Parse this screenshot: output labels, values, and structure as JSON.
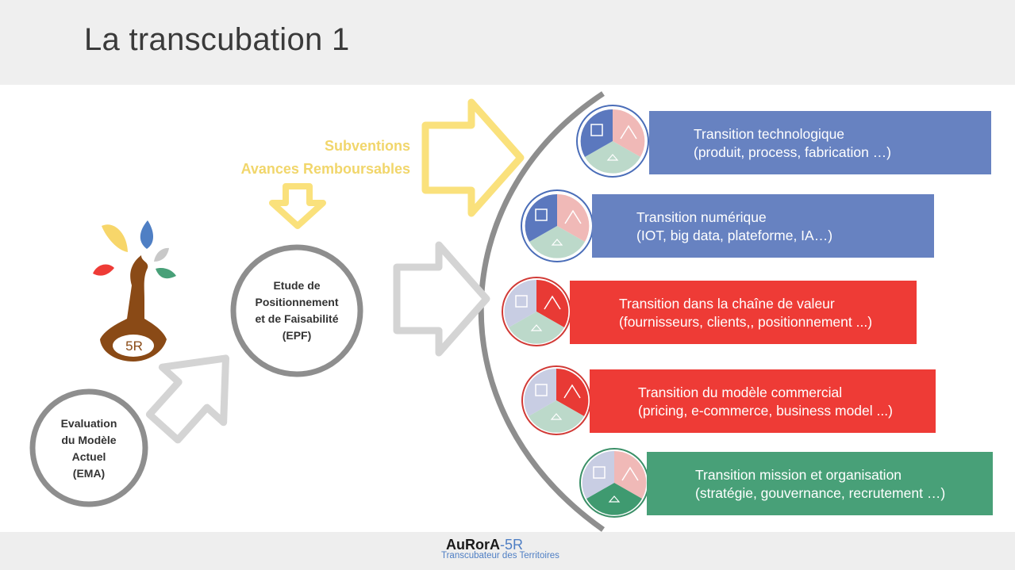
{
  "header": {
    "title": "La transcubation 1"
  },
  "funding": {
    "line1": "Subventions",
    "line2": "Avances Remboursables"
  },
  "logo": {
    "label": "5R"
  },
  "ema": {
    "lines": [
      "Evaluation",
      "du Modèle",
      "Actuel",
      "(EMA)"
    ]
  },
  "epf": {
    "lines": [
      "Etude de",
      "Positionnement",
      "et de Faisabilité",
      "(EPF)"
    ]
  },
  "transitions": [
    {
      "title": "Transition technologique",
      "detail": "(produit, process, fabrication …)",
      "color": "#6782c1"
    },
    {
      "title": "Transition numérique",
      "detail": "(IOT, big data, plateforme, IA…)",
      "color": "#6782c1"
    },
    {
      "title": "Transition dans la chaîne de valeur",
      "detail": "(fournisseurs, clients,, positionnement ...)",
      "color": "#ee3b36"
    },
    {
      "title": "Transition du modèle commercial",
      "detail": "(pricing, e-commerce, business model ...)",
      "color": "#ee3b36"
    },
    {
      "title": "Transition mission et organisation",
      "detail": "(stratégie, gouvernance, recrutement …)",
      "color": "#48a078"
    }
  ],
  "footer": {
    "brand_main": "AuRorA",
    "brand_accent": "-5R",
    "tagline": "Transcubateur des Territoires"
  }
}
